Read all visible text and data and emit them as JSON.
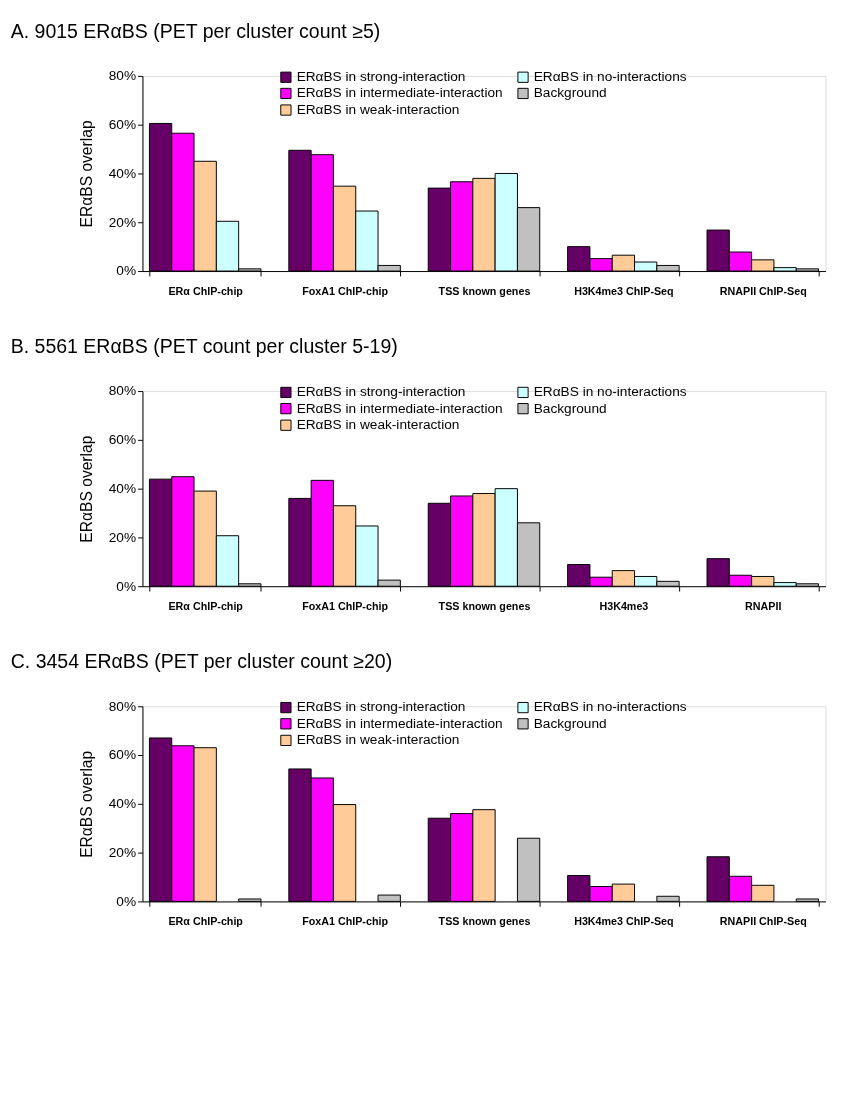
{
  "chart_data": [
    {
      "type": "bar",
      "title": "A. 9015 ERαBS (PET per cluster count ≥5)",
      "ylabel": "ERαBS overlap",
      "categories": [
        "ERα ChIP-chip",
        "FoxA1 ChIP-chip",
        "TSS known genes",
        "H3K4me3 ChIP-Seq",
        "RNAPII ChIP-Seq"
      ],
      "series": [
        {
          "name": "ERαBS in strong-interaction",
          "color": "#660066",
          "values": [
            60.5,
            49.5,
            34,
            10,
            16.8
          ]
        },
        {
          "name": "ERαBS in intermediate-interaction",
          "color": "#ff00ff",
          "values": [
            56.5,
            47.7,
            36.6,
            5.1,
            7.8
          ]
        },
        {
          "name": "ERαBS in weak-interaction",
          "color": "#ffcc99",
          "values": [
            45,
            34.8,
            38,
            6.5,
            4.6
          ]
        },
        {
          "name": "ERαBS in no-interactions",
          "color": "#ccffff",
          "values": [
            20.4,
            24.6,
            40,
            3.7,
            1.4
          ]
        },
        {
          "name": "Background",
          "color": "#c0c0c0",
          "values": [
            0.9,
            2.3,
            26,
            2.3,
            0.9
          ]
        }
      ],
      "ylim": [
        0,
        80
      ],
      "yticks": [
        {
          "value": 0,
          "label": "0%"
        },
        {
          "value": 20,
          "label": "20%"
        },
        {
          "value": 40,
          "label": "40%"
        },
        {
          "value": 60,
          "label": "60%"
        },
        {
          "value": 80,
          "label": "80%"
        }
      ],
      "grid": false,
      "legend": "top right"
    },
    {
      "type": "bar",
      "title": "B. 5561 ERαBS (PET count per cluster 5-19)",
      "ylabel": "ERαBS overlap",
      "categories": [
        "ERα ChIP-chip",
        "FoxA1 ChIP-chip",
        "TSS known genes",
        "H3K4me3",
        "RNAPII"
      ],
      "series": [
        {
          "name": "ERαBS in strong-interaction",
          "color": "#660066",
          "values": [
            43.9,
            36,
            34,
            8.9,
            11.3
          ]
        },
        {
          "name": "ERαBS in intermediate-interaction",
          "color": "#ff00ff",
          "values": [
            44.9,
            43.4,
            37,
            3.7,
            4.5
          ]
        },
        {
          "name": "ERαBS in weak-interaction",
          "color": "#ffcc99",
          "values": [
            39,
            33,
            38,
            6.4,
            4
          ]
        },
        {
          "name": "ERαBS in no-interactions",
          "color": "#ccffff",
          "values": [
            20.7,
            24.7,
            40,
            4,
            1.5
          ]
        },
        {
          "name": "Background",
          "color": "#c0c0c0",
          "values": [
            1,
            2.5,
            26,
            2,
            1
          ]
        }
      ],
      "ylim": [
        0,
        80
      ],
      "yticks": [
        {
          "value": 0,
          "label": "0%"
        },
        {
          "value": 20,
          "label": "20%"
        },
        {
          "value": 40,
          "label": "40%"
        },
        {
          "value": 60,
          "label": "60%"
        },
        {
          "value": 80,
          "label": "80%"
        }
      ],
      "grid": false,
      "legend": "top right"
    },
    {
      "type": "bar",
      "title": "C. 3454 ERαBS (PET per cluster count ≥20)",
      "ylabel": "ERαBS overlap",
      "categories": [
        "ERα ChIP-chip",
        "FoxA1 ChIP-chip",
        "TSS known genes",
        "H3K4me3 ChIP-Seq",
        "RNAPII ChIP-Seq"
      ],
      "series": [
        {
          "name": "ERαBS in strong-interaction",
          "color": "#660066",
          "values": [
            67,
            54.3,
            34.1,
            10.6,
            18.3
          ]
        },
        {
          "name": "ERαBS in intermediate-interaction",
          "color": "#ff00ff",
          "values": [
            63.8,
            50.6,
            36,
            6.1,
            10.3
          ]
        },
        {
          "name": "ERαBS in weak-interaction",
          "color": "#ffcc99",
          "values": [
            63,
            39.7,
            37.6,
            7.1,
            6.6
          ]
        },
        {
          "name": "ERαBS in no-interactions",
          "color": "#ccffff",
          "values": [
            null,
            null,
            null,
            null,
            null
          ]
        },
        {
          "name": "Background",
          "color": "#c0c0c0",
          "values": [
            1,
            2.6,
            25.9,
            2.1,
            1
          ]
        }
      ],
      "ylim": [
        0,
        80
      ],
      "yticks": [
        {
          "value": 0,
          "label": "0%"
        },
        {
          "value": 20,
          "label": "20%"
        },
        {
          "value": 40,
          "label": "40%"
        },
        {
          "value": 60,
          "label": "60%"
        },
        {
          "value": 80,
          "label": "80%"
        }
      ],
      "grid": false,
      "legend": "top right"
    }
  ]
}
